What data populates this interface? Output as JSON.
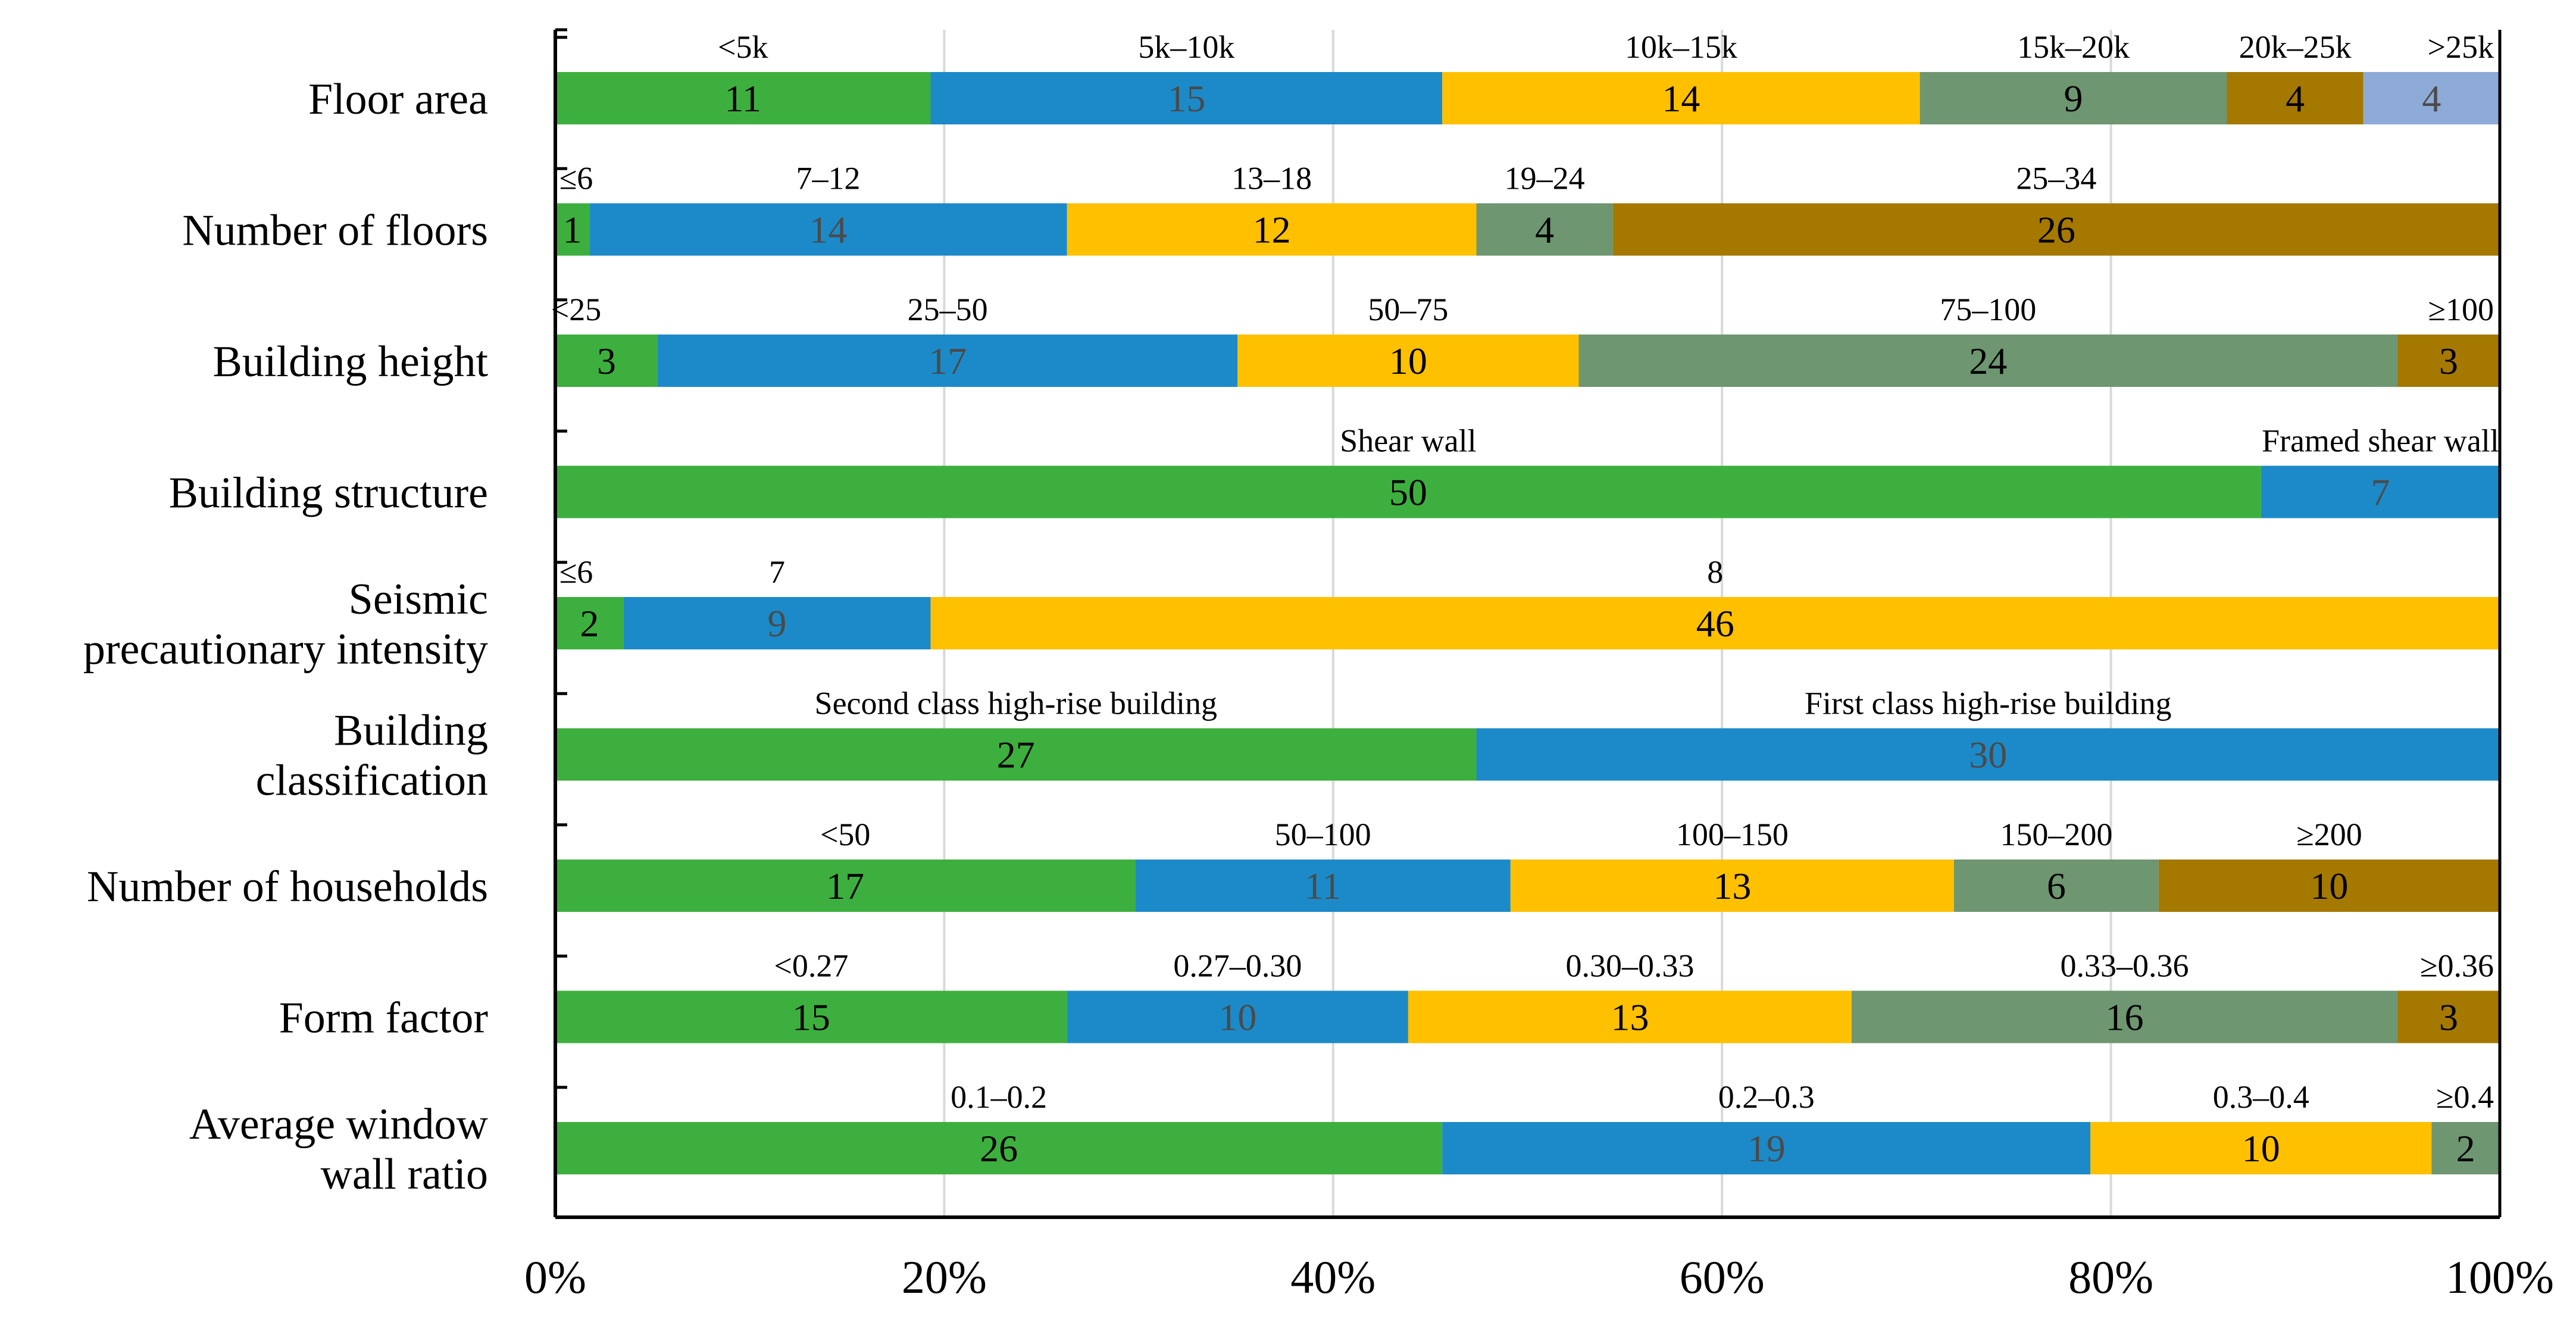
{
  "colors": {
    "green": "#3daf3e",
    "blue": "#1c8ac8",
    "yellow": "#ffc000",
    "gray_green": "#6e9670",
    "brown": "#a57800",
    "light_blue": "#8eaad6",
    "grid": "#d9d9d9",
    "axis": "#000000"
  },
  "chart_data": {
    "type": "stacked-bar-horizontal",
    "title": "",
    "xlabel": "",
    "ylabel": "",
    "xlim": [
      0,
      100
    ],
    "x_ticks": [
      "0%",
      "20%",
      "40%",
      "60%",
      "80%",
      "100%"
    ],
    "grid": "vertical",
    "rows": [
      {
        "category": "Floor area",
        "segments": [
          {
            "label": "<5k",
            "value": 11,
            "color": "green"
          },
          {
            "label": "5k–10k",
            "value": 15,
            "color": "blue"
          },
          {
            "label": "10k–15k",
            "value": 14,
            "color": "yellow"
          },
          {
            "label": "15k–20k",
            "value": 9,
            "color": "gray_green"
          },
          {
            "label": "20k–25k",
            "value": 4,
            "color": "brown"
          },
          {
            "label": ">25k",
            "value": 4,
            "color": "light_blue"
          }
        ]
      },
      {
        "category": "Number of floors",
        "segments": [
          {
            "label": "≤6",
            "value": 1,
            "color": "green"
          },
          {
            "label": "7–12",
            "value": 14,
            "color": "blue"
          },
          {
            "label": "13–18",
            "value": 12,
            "color": "yellow"
          },
          {
            "label": "19–24",
            "value": 4,
            "color": "gray_green"
          },
          {
            "label": "25–34",
            "value": 26,
            "color": "brown"
          }
        ]
      },
      {
        "category": "Building height",
        "segments": [
          {
            "label": "<25",
            "value": 3,
            "color": "green"
          },
          {
            "label": "25–50",
            "value": 17,
            "color": "blue"
          },
          {
            "label": "50–75",
            "value": 10,
            "color": "yellow"
          },
          {
            "label": "75–100",
            "value": 24,
            "color": "gray_green"
          },
          {
            "label": "≥100",
            "value": 3,
            "color": "brown"
          }
        ]
      },
      {
        "category": "Building structure",
        "segments": [
          {
            "label": "Shear wall",
            "value": 50,
            "color": "green"
          },
          {
            "label": "Framed shear wall",
            "value": 7,
            "color": "blue"
          }
        ]
      },
      {
        "category": "Seismic\nprecautionary intensity",
        "segments": [
          {
            "label": "≤6",
            "value": 2,
            "color": "green"
          },
          {
            "label": "7",
            "value": 9,
            "color": "blue"
          },
          {
            "label": "8",
            "value": 46,
            "color": "yellow"
          }
        ]
      },
      {
        "category": "Building\nclassification",
        "segments": [
          {
            "label": "Second class high-rise building",
            "value": 27,
            "color": "green"
          },
          {
            "label": "First class high-rise building",
            "value": 30,
            "color": "blue"
          }
        ]
      },
      {
        "category": "Number of households",
        "segments": [
          {
            "label": "<50",
            "value": 17,
            "color": "green"
          },
          {
            "label": "50–100",
            "value": 11,
            "color": "blue"
          },
          {
            "label": "100–150",
            "value": 13,
            "color": "yellow"
          },
          {
            "label": "150–200",
            "value": 6,
            "color": "gray_green"
          },
          {
            "label": "≥200",
            "value": 10,
            "color": "brown"
          }
        ]
      },
      {
        "category": "Form factor",
        "segments": [
          {
            "label": "<0.27",
            "value": 15,
            "color": "green"
          },
          {
            "label": "0.27–0.30",
            "value": 10,
            "color": "blue"
          },
          {
            "label": "0.30–0.33",
            "value": 13,
            "color": "yellow"
          },
          {
            "label": "0.33–0.36",
            "value": 16,
            "color": "gray_green"
          },
          {
            "label": "≥0.36",
            "value": 3,
            "color": "brown"
          }
        ]
      },
      {
        "category": "Average window\nwall ratio",
        "segments": [
          {
            "label": "0.1–0.2",
            "value": 26,
            "color": "green"
          },
          {
            "label": "0.2–0.3",
            "value": 19,
            "color": "blue"
          },
          {
            "label": "0.3–0.4",
            "value": 10,
            "color": "yellow"
          },
          {
            "label": "≥0.4",
            "value": 2,
            "color": "gray_green"
          }
        ]
      }
    ]
  }
}
